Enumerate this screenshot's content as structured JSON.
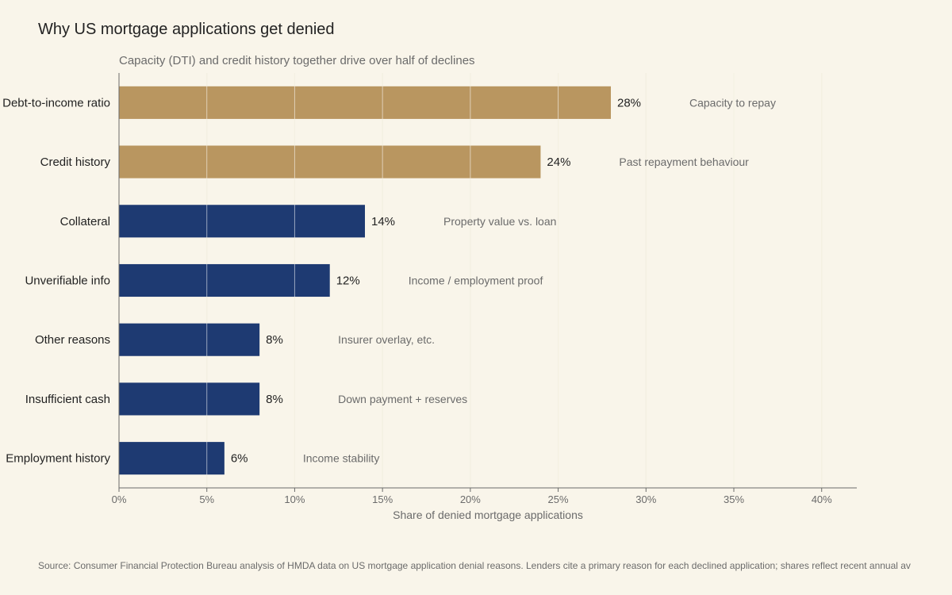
{
  "title": "Why US mortgage applications get denied",
  "subtitle": "Capacity (DTI) and credit history together drive over half of declines",
  "source": "Source: Consumer Financial Protection Bureau analysis of HMDA data on US mortgage application denial reasons. Lenders cite a primary reason for each declined application; shares reflect recent annual av",
  "colors": {
    "highlight": "#b99660",
    "base": "#1e3a72",
    "grid": "#e6dfc0",
    "axis": "#6b6b6b",
    "background": "#f9f5ea"
  },
  "chart_data": {
    "type": "bar",
    "orientation": "horizontal",
    "categories": [
      "Debt-to-income ratio",
      "Credit history",
      "Collateral",
      "Unverifiable info",
      "Other reasons",
      "Insufficient cash",
      "Employment history"
    ],
    "values": [
      28,
      24,
      14,
      12,
      8,
      8,
      6
    ],
    "value_labels": [
      "28%",
      "24%",
      "14%",
      "12%",
      "8%",
      "8%",
      "6%"
    ],
    "annotations": [
      "Capacity to repay",
      "Past repayment behaviour",
      "Property value vs. loan",
      "Income / employment proof",
      "Insurer overlay, etc.",
      "Down payment + reserves",
      "Income stability"
    ],
    "highlighted": [
      true,
      true,
      false,
      false,
      false,
      false,
      false
    ],
    "xlabel": "Share of denied mortgage applications",
    "ylabel": "",
    "xlim": [
      0,
      42
    ],
    "xticks": [
      0,
      5,
      10,
      15,
      20,
      25,
      30,
      35,
      40
    ],
    "xtick_labels": [
      "0%",
      "5%",
      "10%",
      "15%",
      "20%",
      "25%",
      "30%",
      "35%",
      "40%"
    ],
    "grid": "vertical"
  }
}
